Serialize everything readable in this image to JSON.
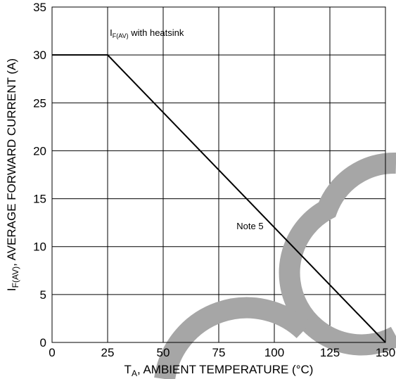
{
  "chart_data": {
    "type": "line",
    "x_label_main": "T",
    "x_label_sub": "A",
    "x_label_rest": ", AMBIENT TEMPERATURE (°C)",
    "y_label_main": "I",
    "y_label_sub": "F(AV)",
    "y_label_rest": ", AVERAGE FORWARD CURRENT (A)",
    "xlim": [
      0,
      150
    ],
    "ylim": [
      0,
      35
    ],
    "x_ticks": [
      0,
      25,
      50,
      75,
      100,
      125,
      150
    ],
    "y_ticks": [
      0,
      5,
      10,
      15,
      20,
      25,
      30,
      35
    ],
    "grid": true,
    "series": [
      {
        "x": [
          0,
          25,
          150
        ],
        "y": [
          30,
          30,
          0
        ]
      }
    ],
    "annotations": [
      {
        "main": "I",
        "sub": "F(AV)",
        "rest": " with heatsink",
        "x": 26,
        "y": 32
      },
      {
        "main": "Note 5",
        "sub": "",
        "rest": "",
        "x": 83,
        "y": 11.8
      }
    ],
    "watermark": "ON"
  }
}
